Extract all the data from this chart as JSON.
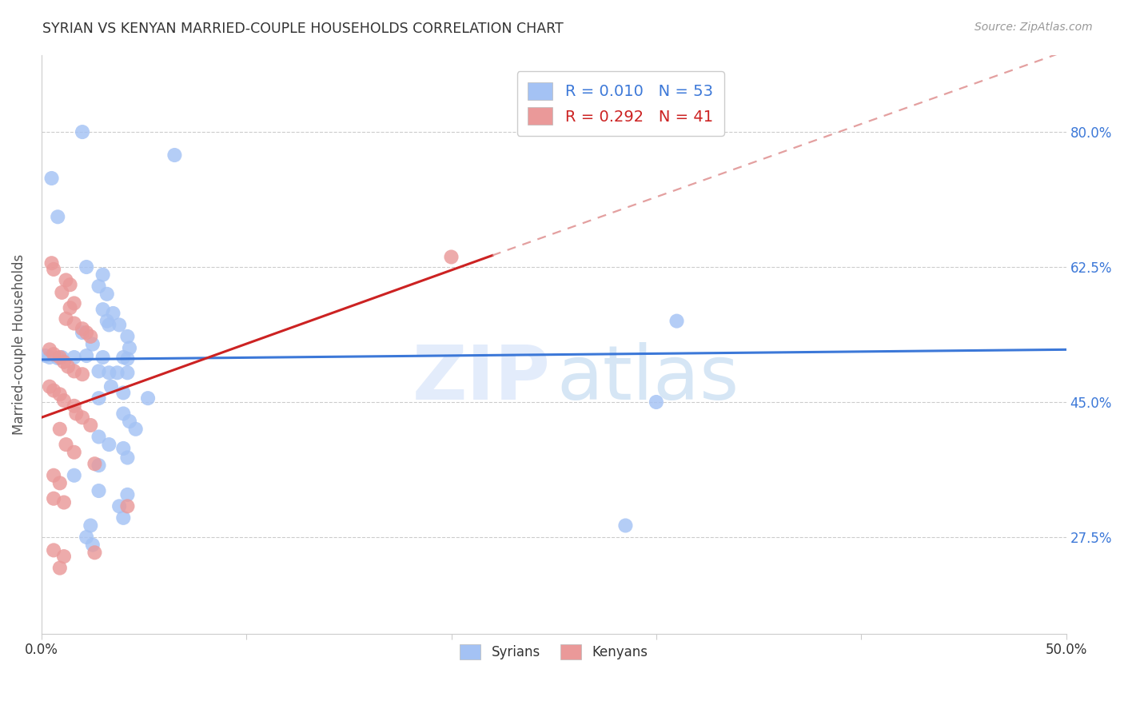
{
  "title": "SYRIAN VS KENYAN MARRIED-COUPLE HOUSEHOLDS CORRELATION CHART",
  "source": "Source: ZipAtlas.com",
  "ylabel": "Married-couple Households",
  "ytick_labels": [
    "27.5%",
    "45.0%",
    "62.5%",
    "80.0%"
  ],
  "ytick_values": [
    0.275,
    0.45,
    0.625,
    0.8
  ],
  "xlim": [
    0.0,
    0.5
  ],
  "ylim": [
    0.15,
    0.9
  ],
  "legend_blue_R": "0.010",
  "legend_blue_N": "53",
  "legend_pink_R": "0.292",
  "legend_pink_N": "41",
  "color_blue": "#a4c2f4",
  "color_pink": "#ea9999",
  "color_blue_line": "#3c78d8",
  "color_pink_line": "#cc2222",
  "color_pink_dash": "#dd8888",
  "blue_line": [
    [
      0.0,
      0.505
    ],
    [
      0.5,
      0.518
    ]
  ],
  "pink_line_solid": [
    [
      0.0,
      0.43
    ],
    [
      0.22,
      0.64
    ]
  ],
  "pink_line_dash": [
    [
      0.22,
      0.64
    ],
    [
      0.5,
      0.905
    ]
  ],
  "blue_points": [
    [
      0.005,
      0.74
    ],
    [
      0.008,
      0.69
    ],
    [
      0.02,
      0.8
    ],
    [
      0.065,
      0.77
    ],
    [
      0.022,
      0.625
    ],
    [
      0.03,
      0.615
    ],
    [
      0.028,
      0.6
    ],
    [
      0.032,
      0.59
    ],
    [
      0.03,
      0.57
    ],
    [
      0.035,
      0.565
    ],
    [
      0.033,
      0.55
    ],
    [
      0.02,
      0.54
    ],
    [
      0.025,
      0.525
    ],
    [
      0.032,
      0.555
    ],
    [
      0.038,
      0.55
    ],
    [
      0.042,
      0.535
    ],
    [
      0.043,
      0.52
    ],
    [
      0.002,
      0.51
    ],
    [
      0.004,
      0.508
    ],
    [
      0.008,
      0.507
    ],
    [
      0.01,
      0.508
    ],
    [
      0.016,
      0.508
    ],
    [
      0.022,
      0.51
    ],
    [
      0.04,
      0.508
    ],
    [
      0.042,
      0.506
    ],
    [
      0.03,
      0.508
    ],
    [
      0.028,
      0.49
    ],
    [
      0.033,
      0.488
    ],
    [
      0.037,
      0.488
    ],
    [
      0.042,
      0.488
    ],
    [
      0.034,
      0.47
    ],
    [
      0.04,
      0.462
    ],
    [
      0.028,
      0.455
    ],
    [
      0.052,
      0.455
    ],
    [
      0.04,
      0.435
    ],
    [
      0.043,
      0.425
    ],
    [
      0.046,
      0.415
    ],
    [
      0.028,
      0.405
    ],
    [
      0.033,
      0.395
    ],
    [
      0.04,
      0.39
    ],
    [
      0.042,
      0.378
    ],
    [
      0.028,
      0.368
    ],
    [
      0.016,
      0.355
    ],
    [
      0.028,
      0.335
    ],
    [
      0.042,
      0.33
    ],
    [
      0.038,
      0.315
    ],
    [
      0.04,
      0.3
    ],
    [
      0.024,
      0.29
    ],
    [
      0.022,
      0.275
    ],
    [
      0.025,
      0.265
    ],
    [
      0.31,
      0.555
    ],
    [
      0.3,
      0.45
    ],
    [
      0.285,
      0.29
    ]
  ],
  "pink_points": [
    [
      0.005,
      0.63
    ],
    [
      0.006,
      0.622
    ],
    [
      0.012,
      0.608
    ],
    [
      0.014,
      0.602
    ],
    [
      0.01,
      0.592
    ],
    [
      0.016,
      0.578
    ],
    [
      0.014,
      0.572
    ],
    [
      0.012,
      0.558
    ],
    [
      0.016,
      0.552
    ],
    [
      0.02,
      0.545
    ],
    [
      0.022,
      0.54
    ],
    [
      0.024,
      0.535
    ],
    [
      0.004,
      0.518
    ],
    [
      0.006,
      0.512
    ],
    [
      0.009,
      0.508
    ],
    [
      0.011,
      0.502
    ],
    [
      0.013,
      0.496
    ],
    [
      0.016,
      0.49
    ],
    [
      0.02,
      0.486
    ],
    [
      0.004,
      0.47
    ],
    [
      0.006,
      0.465
    ],
    [
      0.009,
      0.46
    ],
    [
      0.011,
      0.452
    ],
    [
      0.016,
      0.445
    ],
    [
      0.017,
      0.435
    ],
    [
      0.02,
      0.43
    ],
    [
      0.024,
      0.42
    ],
    [
      0.009,
      0.415
    ],
    [
      0.012,
      0.395
    ],
    [
      0.016,
      0.385
    ],
    [
      0.026,
      0.37
    ],
    [
      0.006,
      0.355
    ],
    [
      0.009,
      0.345
    ],
    [
      0.006,
      0.325
    ],
    [
      0.011,
      0.32
    ],
    [
      0.042,
      0.315
    ],
    [
      0.006,
      0.258
    ],
    [
      0.011,
      0.25
    ],
    [
      0.026,
      0.255
    ],
    [
      0.2,
      0.638
    ],
    [
      0.009,
      0.235
    ]
  ],
  "background_color": "#ffffff",
  "grid_color": "#cccccc"
}
